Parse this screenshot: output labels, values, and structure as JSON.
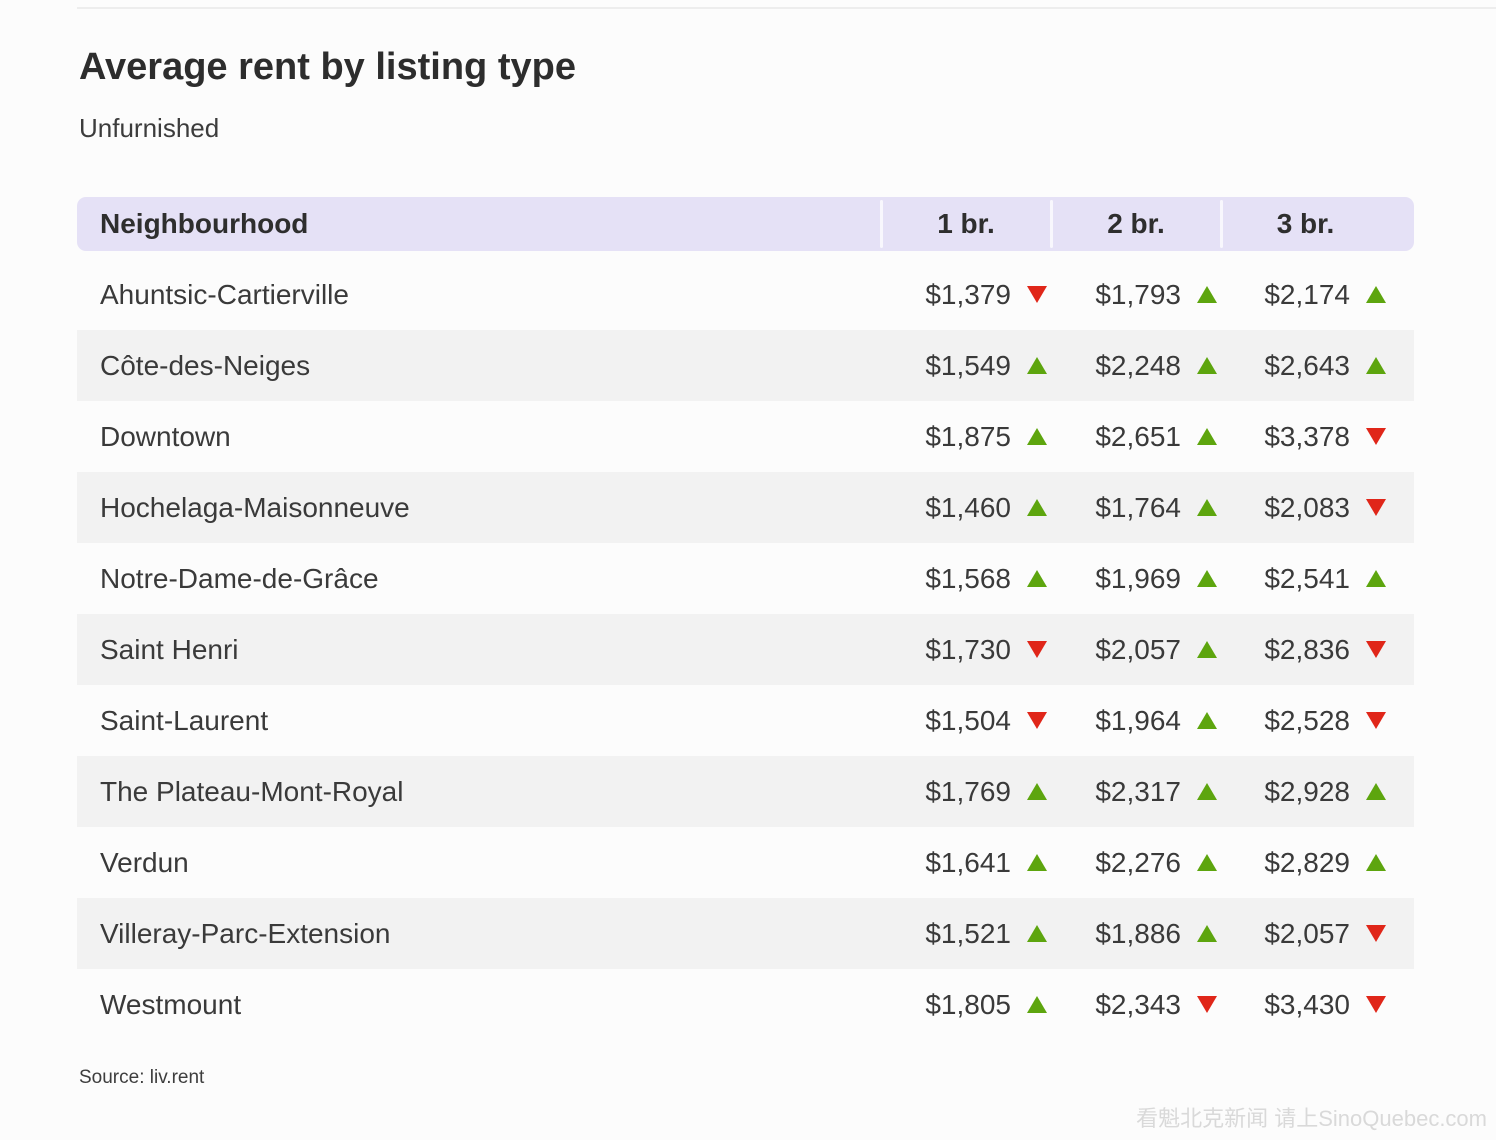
{
  "colors": {
    "header_bg": "#e5e1f6",
    "row_stripe": "#f2f2f2",
    "trend_up": "#5da50e",
    "trend_down": "#e02619"
  },
  "footer": {
    "source_label": "Source: liv.rent",
    "watermark": "看魁北克新闻 请上SinoQuebec.com"
  },
  "chart_data": {
    "type": "table",
    "title": "Average rent by listing type",
    "subtitle": "Unfurnished",
    "source": "liv.rent",
    "columns": [
      "Neighbourhood",
      "1 br.",
      "2 br.",
      "3 br."
    ],
    "legend_note": "green up arrow = rent increased, red down arrow = rent decreased",
    "rows": [
      {
        "name": "Ahuntsic-Cartierville",
        "br1": {
          "price": "$1,379",
          "trend": "down"
        },
        "br2": {
          "price": "$1,793",
          "trend": "up"
        },
        "br3": {
          "price": "$2,174",
          "trend": "up"
        }
      },
      {
        "name": "Côte-des-Neiges",
        "br1": {
          "price": "$1,549",
          "trend": "up"
        },
        "br2": {
          "price": "$2,248",
          "trend": "up"
        },
        "br3": {
          "price": "$2,643",
          "trend": "up"
        }
      },
      {
        "name": "Downtown",
        "br1": {
          "price": "$1,875",
          "trend": "up"
        },
        "br2": {
          "price": "$2,651",
          "trend": "up"
        },
        "br3": {
          "price": "$3,378",
          "trend": "down"
        }
      },
      {
        "name": "Hochelaga-Maisonneuve",
        "br1": {
          "price": "$1,460",
          "trend": "up"
        },
        "br2": {
          "price": "$1,764",
          "trend": "up"
        },
        "br3": {
          "price": "$2,083",
          "trend": "down"
        }
      },
      {
        "name": "Notre-Dame-de-Grâce",
        "br1": {
          "price": "$1,568",
          "trend": "up"
        },
        "br2": {
          "price": "$1,969",
          "trend": "up"
        },
        "br3": {
          "price": "$2,541",
          "trend": "up"
        }
      },
      {
        "name": "Saint Henri",
        "br1": {
          "price": "$1,730",
          "trend": "down"
        },
        "br2": {
          "price": "$2,057",
          "trend": "up"
        },
        "br3": {
          "price": "$2,836",
          "trend": "down"
        }
      },
      {
        "name": "Saint-Laurent",
        "br1": {
          "price": "$1,504",
          "trend": "down"
        },
        "br2": {
          "price": "$1,964",
          "trend": "up"
        },
        "br3": {
          "price": "$2,528",
          "trend": "down"
        }
      },
      {
        "name": "The Plateau-Mont-Royal",
        "br1": {
          "price": "$1,769",
          "trend": "up"
        },
        "br2": {
          "price": "$2,317",
          "trend": "up"
        },
        "br3": {
          "price": "$2,928",
          "trend": "up"
        }
      },
      {
        "name": "Verdun",
        "br1": {
          "price": "$1,641",
          "trend": "up"
        },
        "br2": {
          "price": "$2,276",
          "trend": "up"
        },
        "br3": {
          "price": "$2,829",
          "trend": "up"
        }
      },
      {
        "name": "Villeray-Parc-Extension",
        "br1": {
          "price": "$1,521",
          "trend": "up"
        },
        "br2": {
          "price": "$1,886",
          "trend": "up"
        },
        "br3": {
          "price": "$2,057",
          "trend": "down"
        }
      },
      {
        "name": "Westmount",
        "br1": {
          "price": "$1,805",
          "trend": "up"
        },
        "br2": {
          "price": "$2,343",
          "trend": "down"
        },
        "br3": {
          "price": "$3,430",
          "trend": "down"
        }
      }
    ]
  }
}
